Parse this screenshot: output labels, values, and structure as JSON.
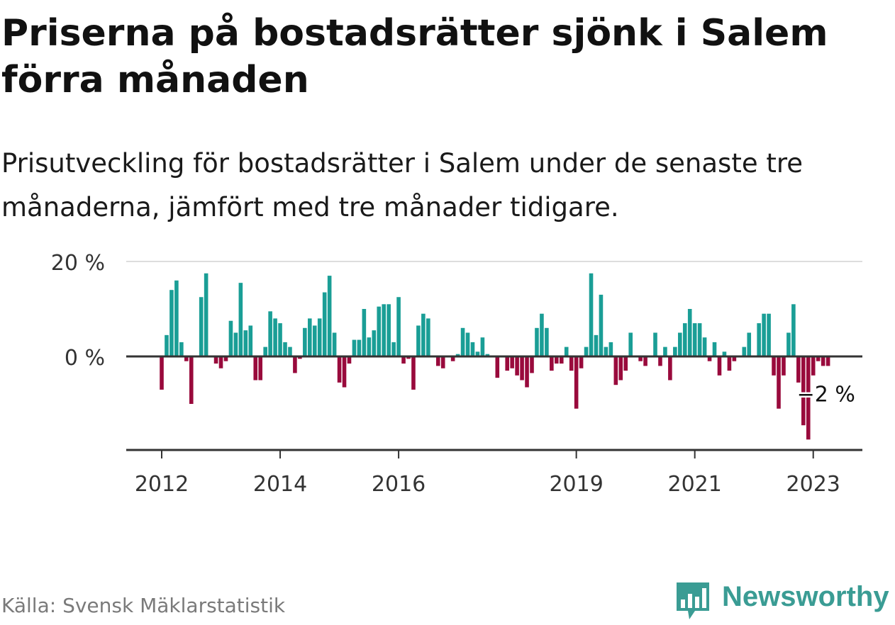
{
  "header": {
    "title": "Priserna på bostadsrätter sjönk i Salem förra månaden",
    "subtitle": "Prisutveckling för bostadsrätter i Salem under de senaste tre månaderna, jämfört med tre månader tidigare."
  },
  "footer": {
    "source": "Källa: Svensk Mäklarstatistik",
    "brand": "Newsworthy",
    "brand_icon": "bar-chart-speech-bubble-icon"
  },
  "colors": {
    "positive": "#1a9e96",
    "negative": "#990a3c",
    "grid": "#dddddd",
    "axis": "#333333",
    "brand": "#3a9c94"
  },
  "chart_data": {
    "type": "bar",
    "title": "Priserna på bostadsrätter sjönk i Salem förra månaden",
    "xlabel": "",
    "ylabel": "",
    "ylim": [
      -20,
      20
    ],
    "y_ticks": [
      {
        "value": 0,
        "label": "0 %"
      },
      {
        "value": 20,
        "label": "20 %"
      }
    ],
    "x_ticks": [
      {
        "year": 2012,
        "label": "2012"
      },
      {
        "year": 2014,
        "label": "2014"
      },
      {
        "year": 2016,
        "label": "2016"
      },
      {
        "year": 2019,
        "label": "2019"
      },
      {
        "year": 2021,
        "label": "2021"
      },
      {
        "year": 2023,
        "label": "2023"
      }
    ],
    "start": "2012-01",
    "end": "2023-04",
    "annotation": {
      "text": "−2 %",
      "value": -2
    },
    "series": [
      {
        "name": "Prisutveckling",
        "values": [
          -7,
          4.5,
          14,
          16,
          3,
          -1,
          -10,
          0,
          12.5,
          17.5,
          0,
          -1.5,
          -2.5,
          -1,
          7.5,
          5,
          15.5,
          5.5,
          6.5,
          -5,
          -5,
          2,
          9.5,
          8,
          7,
          3,
          2,
          -3.5,
          -0.5,
          6,
          8,
          6.5,
          8,
          13.5,
          17,
          5,
          -5.5,
          -6.5,
          -1.5,
          3.5,
          3.5,
          10,
          4,
          5.5,
          10.5,
          11,
          11,
          3,
          12.5,
          -1.5,
          -0.5,
          -7,
          6.5,
          9,
          8,
          0,
          -2,
          -2.5,
          0,
          -1,
          0.5,
          6,
          5,
          3,
          1,
          4,
          0.5,
          0,
          -4.5,
          0,
          -3,
          -2.5,
          -4,
          -5,
          -6.5,
          -3.5,
          6,
          9,
          6,
          -3,
          -1.5,
          -1.5,
          2,
          -3,
          -11,
          -2.5,
          2,
          17.5,
          4.5,
          13,
          2,
          3,
          -6,
          -5,
          -3,
          5,
          0,
          -1,
          -2,
          0,
          5,
          -2,
          2,
          -5,
          2,
          5,
          7,
          10,
          7,
          7,
          4,
          -1,
          3,
          -4,
          1,
          -3,
          -1,
          0,
          2,
          5,
          0,
          7,
          9,
          9,
          -4,
          -11,
          -4,
          5,
          11,
          -5.5,
          -14.5,
          -17.5,
          -4,
          -1,
          -2,
          -2
        ]
      }
    ]
  }
}
